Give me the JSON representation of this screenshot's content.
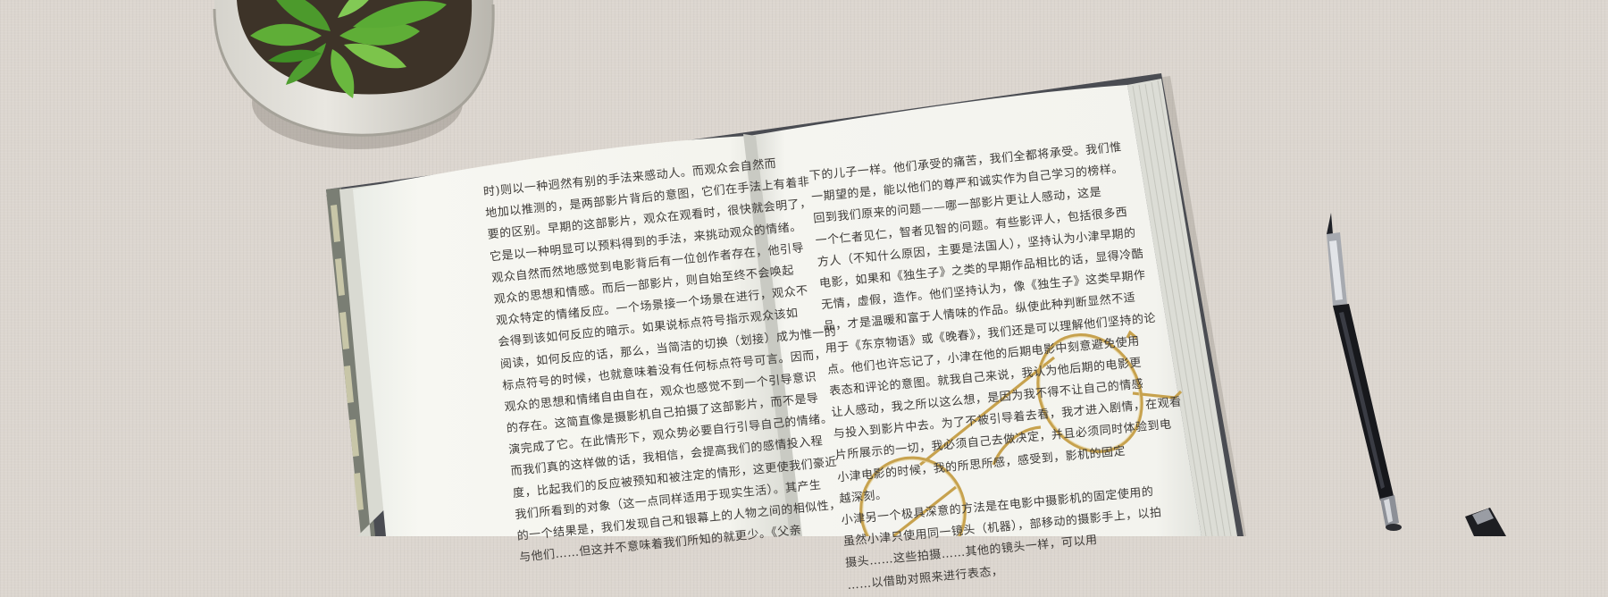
{
  "scene": {
    "background_color": "#dcd6cf",
    "objects": [
      "potted-succulent",
      "open-book",
      "eyeglasses",
      "fountain-pen",
      "pen-cap"
    ]
  },
  "book": {
    "left_page_lines": [
      "时)则以一种迥然有别的手法来感动人。而观众会自然而",
      "地加以推测的，是两部影片背后的意图，它们在手法上有着非",
      "要的区别。早期的这部影片，观众在观看时，很快就会明了，",
      "它是以一种明显可以预料得到的手法，来挑动观众的情绪。",
      "观众自然而然地感觉到电影背后有一位创作者存在，他引导",
      "观众的思想和情感。而后一部影片，则自始至终不会唤起",
      "观众特定的情绪反应。一个场景接一个场景在进行，观众不",
      "会得到该如何反应的暗示。如果说标点符号指示观众该如",
      "阅读，如何反应的话，那么，当简洁的切换（划接）成为惟一的",
      "标点符号的时候，也就意味着没有任何标点符号可言。因而，",
      "观众的思想和情绪自由自在，观众也感觉不到一个引导意识",
      "的存在。这简直像是摄影机自己拍摄了这部影片，而不是导",
      "演完成了它。在此情形下，观众势必要自行引导自己的情绪。",
      "而我们真的这样做的话，我相信，会提高我们的感情投入程",
      "度，比起我们的反应被预知和被注定的情形，这更使我们豪近",
      "我们所看到的对象（这一点同样适用于现实生活）。其产生",
      "的一个结果是，我们发现自己和银幕上的人物之间的相似性，",
      "与他们……但这并不意味着我们所知的就更少。《父亲"
    ],
    "right_page_lines": [
      "下的儿子一样。他们承受的痛苦，我们全都将承受。我们惟",
      "一期望的是，能以他们的尊严和诚实作为自己学习的榜样。",
      "回到我们原来的问题——哪一部影片更让人感动，这是",
      "一个仁者见仁，智者见智的问题。有些影评人，包括很多西",
      "方人（不知什么原因，主要是法国人），坚持认为小津早期的",
      "电影，如果和《独生子》之类的早期作品相比的话，显得冷酷",
      "无情，虚假，造作。他们坚持认为，像《独生子》这类早期作",
      "品，才是温暖和富于人情味的作品。纵使此种判断显然不适",
      "用于《东京物语》或《晚春》，我们还是可以理解他们坚持的论",
      "点。他们也许忘记了，小津在他的后期电影中刻意避免使用",
      "表态和评论的意图。就我自己来说，我认为他后期的电影更",
      "让人感动，我之所以这么想，是因为我不得不让自己的情感",
      "与投入到影片中去。为了不被引导着去看，我才进入剧情，在观看",
      "片所展示的一切，我必须自己去做决定，并且必须同时体验到电",
      "小津电影的时候，我的所思所感，感受到，影机的固定",
      "越深刻。",
      "小津另一个极具深意的方法是在电影中摄影机的固定使用的",
      "虽然小津只使用同一镜头（机器），部移动的摄影手上，以拍",
      "摄头……这些拍摄……其他的镜头一样，可以用",
      "……以借助对照来进行表态，"
    ]
  }
}
